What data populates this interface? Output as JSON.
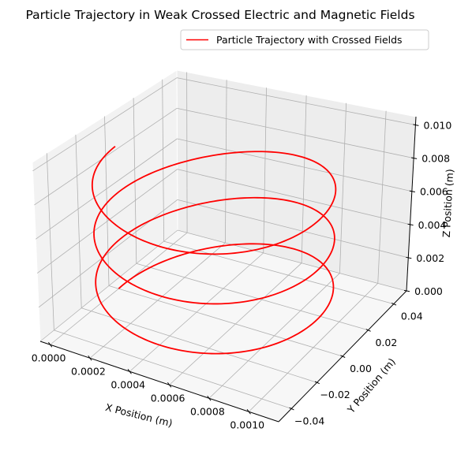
{
  "chart_data": {
    "type": "line3d",
    "title": "Particle Trajectory in Weak Crossed Electric and Magnetic Fields",
    "xlabel": "X Position (m)",
    "ylabel": "Y Position (m)",
    "zlabel": "Z Position (m)",
    "xlim": [
      -5e-05,
      0.00115
    ],
    "ylim": [
      -0.05,
      0.05
    ],
    "zlim": [
      0,
      0.0105
    ],
    "xticks": [
      "0.0000",
      "0.0002",
      "0.0004",
      "0.0006",
      "0.0008",
      "0.0010"
    ],
    "yticks": [
      "−0.04",
      "−0.02",
      "0.00",
      "0.02",
      "0.04"
    ],
    "zticks": [
      "0.000",
      "0.002",
      "0.004",
      "0.006",
      "0.008",
      "0.010"
    ],
    "grid": true,
    "legend_position": "top-right",
    "series": [
      {
        "name": "Particle Trajectory with Crossed Fields",
        "color": "#ff0000",
        "turns": 3,
        "radius": 0.05,
        "x_start": 0.0,
        "x_end": 0.001,
        "z_start": 0.0,
        "z_end": 0.01
      }
    ]
  }
}
